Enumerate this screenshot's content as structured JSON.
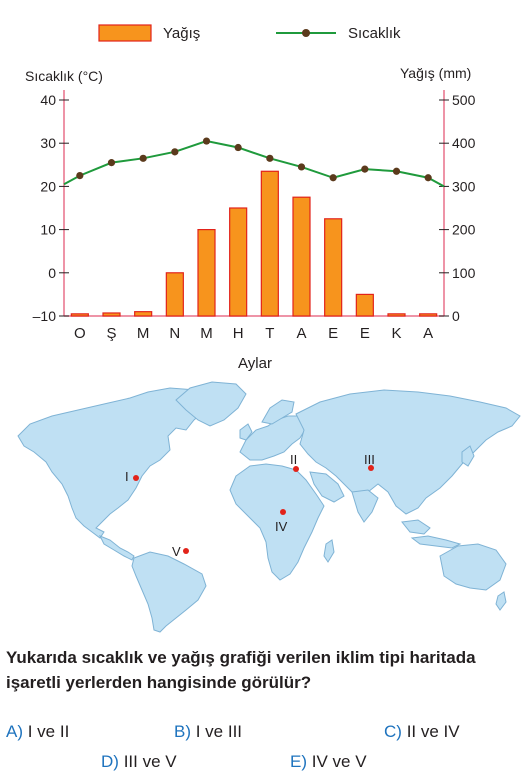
{
  "chart_data": {
    "type": "bar+line",
    "legend": {
      "bar_label": "Yağış",
      "line_label": "Sıcaklık",
      "position": "top"
    },
    "left_axis_title": "Sıcaklık (°C)",
    "right_axis_title": "Yağış (mm)",
    "xlabel": "Aylar",
    "categories": [
      "O",
      "Ş",
      "M",
      "N",
      "M",
      "H",
      "T",
      "A",
      "E",
      "E",
      "K",
      "A"
    ],
    "left_ticks": [
      "40",
      "30",
      "20",
      "10",
      "0",
      "–10"
    ],
    "right_ticks": [
      "500",
      "400",
      "300",
      "200",
      "100",
      "0"
    ],
    "temperature_ylim": [
      -10,
      40
    ],
    "precipitation_ylim": [
      0,
      500
    ],
    "series": [
      {
        "name": "Yağış",
        "kind": "bar",
        "axis": "right",
        "values": [
          5,
          7,
          10,
          100,
          200,
          250,
          335,
          275,
          225,
          50,
          5,
          5
        ]
      },
      {
        "name": "Sıcaklık",
        "kind": "line",
        "axis": "left",
        "values": [
          22.5,
          25.5,
          26.5,
          28.0,
          30.5,
          29.0,
          26.5,
          24.5,
          22.0,
          24.0,
          23.5,
          22.0
        ],
        "line_start": 20.5,
        "line_end": 20.0
      }
    ],
    "grid": false,
    "colors": {
      "bar": "#f7941d",
      "bar_stroke": "#e2231a",
      "line": "#1f9a3c",
      "marker": "#5b3a1c",
      "axis_pink": "#e8708a"
    }
  },
  "map": {
    "markers": [
      {
        "label": "I"
      },
      {
        "label": "II"
      },
      {
        "label": "III"
      },
      {
        "label": "IV"
      },
      {
        "label": "V"
      }
    ],
    "colors": {
      "land": "#bfe0f3",
      "coast": "#7fb3d5",
      "marker": "#e2231a"
    }
  },
  "question": {
    "text": "Yukarıda sıcaklık ve yağış grafiği verilen iklim tipi haritada işaretli yerlerden hangisinde görülür?",
    "options": [
      {
        "letter": "A)",
        "text": "I ve II"
      },
      {
        "letter": "B)",
        "text": "I ve III"
      },
      {
        "letter": "C)",
        "text": "II ve IV"
      },
      {
        "letter": "D)",
        "text": "III ve V"
      },
      {
        "letter": "E)",
        "text": "IV ve V"
      }
    ]
  }
}
